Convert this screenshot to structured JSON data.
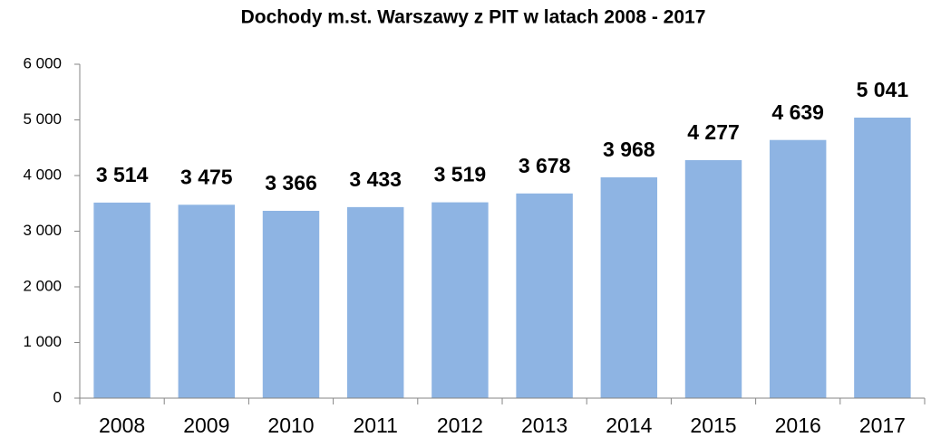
{
  "chart_data": {
    "type": "bar",
    "title": "Dochody m.st. Warszawy z PIT w latach 2008 - 2017",
    "categories": [
      "2008",
      "2009",
      "2010",
      "2011",
      "2012",
      "2013",
      "2014",
      "2015",
      "2016",
      "2017"
    ],
    "values": [
      3514,
      3475,
      3366,
      3433,
      3519,
      3678,
      3968,
      4277,
      4639,
      5041
    ],
    "value_labels": [
      "3 514",
      "3 475",
      "3 366",
      "3 433",
      "3 519",
      "3 678",
      "3 968",
      "4 277",
      "4 639",
      "5 041"
    ],
    "color": "#8eb4e3",
    "ylim": [
      0,
      6000
    ],
    "yticks": [
      0,
      {
        "value": 1000,
        "label": "1 000"
      },
      {
        "value": 2000,
        "label": "2 000"
      },
      {
        "value": 3000,
        "label": "3 000"
      },
      {
        "value": 4000,
        "label": "4 000"
      },
      {
        "value": 5000,
        "label": "5 000"
      },
      {
        "value": 6000,
        "label": "6 000"
      }
    ],
    "grid": false
  }
}
